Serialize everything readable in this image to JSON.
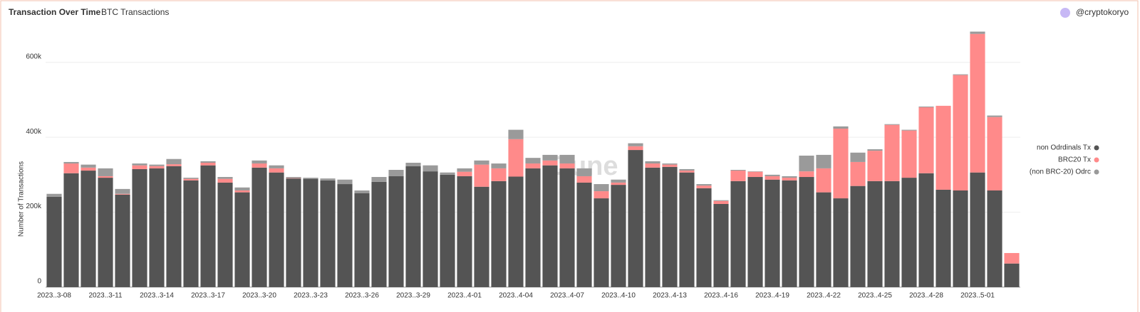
{
  "chart_data": {
    "type": "stacked-bar",
    "title": "Transaction Over Time",
    "subtitle": "BTC Transactions",
    "author": "@cryptokoryo",
    "watermark": "Dune",
    "y_label": "Number of Transactions",
    "categories": [
      "2023..3-08",
      null,
      null,
      "2023..3-11",
      null,
      null,
      "2023..3-14",
      null,
      null,
      "2023..3-17",
      null,
      null,
      "2023..3-20",
      null,
      null,
      "2023..3-23",
      null,
      null,
      "2023..3-26",
      null,
      null,
      "2023..3-29",
      null,
      null,
      "2023..4-01",
      null,
      null,
      "2023..4-04",
      null,
      null,
      "2023..4-07",
      null,
      null,
      "2023..4-10",
      null,
      null,
      "2023..4-13",
      null,
      null,
      "2023..4-16",
      null,
      null,
      "2023..4-19",
      null,
      null,
      "2023..4-22",
      null,
      null,
      "2023..4-25",
      null,
      null,
      "2023..4-28",
      null,
      null,
      "2023..5-01",
      null,
      null
    ],
    "series": [
      {
        "name": "non Odrdinals Tx",
        "color": "#545454",
        "values": [
          241000,
          304000,
          311000,
          292000,
          247000,
          315000,
          317000,
          323000,
          285000,
          325000,
          279000,
          253000,
          319000,
          306000,
          290000,
          289000,
          285000,
          275000,
          251000,
          281000,
          296000,
          323000,
          309000,
          300000,
          296000,
          268000,
          283000,
          295000,
          317000,
          325000,
          317000,
          279000,
          237000,
          273000,
          366000,
          319000,
          321000,
          306000,
          264000,
          222000,
          283000,
          294000,
          287000,
          285000,
          294000,
          253000,
          237000,
          270000,
          283000,
          283000,
          292000,
          304000,
          260000,
          258000,
          306000,
          258000,
          63000
        ]
      },
      {
        "name": "BRC20 Tx",
        "color": "#ff8a8a",
        "values": [
          0,
          26000,
          8000,
          4000,
          2000,
          10000,
          6000,
          5000,
          4000,
          7000,
          10000,
          5000,
          11000,
          11000,
          1000,
          0,
          0,
          0,
          0,
          0,
          0,
          0,
          0,
          0,
          12000,
          59000,
          34000,
          100000,
          13000,
          13000,
          13000,
          17000,
          19000,
          6000,
          10000,
          11000,
          6000,
          5000,
          7000,
          8000,
          28000,
          14000,
          9000,
          7000,
          15000,
          64000,
          186000,
          64000,
          81000,
          150000,
          126000,
          176000,
          224000,
          308000,
          370000,
          196000,
          28000
        ]
      },
      {
        "name": "(non BRC-20) Odrс",
        "color": "#9a9a9a",
        "values": [
          8000,
          4000,
          8000,
          21000,
          13000,
          5000,
          4000,
          14000,
          3000,
          4000,
          5000,
          8000,
          8000,
          8000,
          3000,
          3000,
          5000,
          12000,
          7000,
          13000,
          17000,
          9000,
          16000,
          6000,
          9000,
          11000,
          13000,
          25000,
          15000,
          15000,
          23000,
          21000,
          19000,
          8000,
          8000,
          6000,
          3000,
          4000,
          4000,
          2000,
          2000,
          1000,
          4000,
          4000,
          42000,
          36000,
          6000,
          25000,
          4000,
          2000,
          2000,
          2000,
          0,
          2000,
          6000,
          4000,
          0
        ]
      }
    ],
    "ylim": [
      0,
      700000
    ],
    "yticks": [
      0,
      {
        "value": 200000,
        "label": "200k"
      },
      {
        "value": 400000,
        "label": "400k"
      },
      {
        "value": 600000,
        "label": "600k"
      }
    ],
    "grid": true
  }
}
